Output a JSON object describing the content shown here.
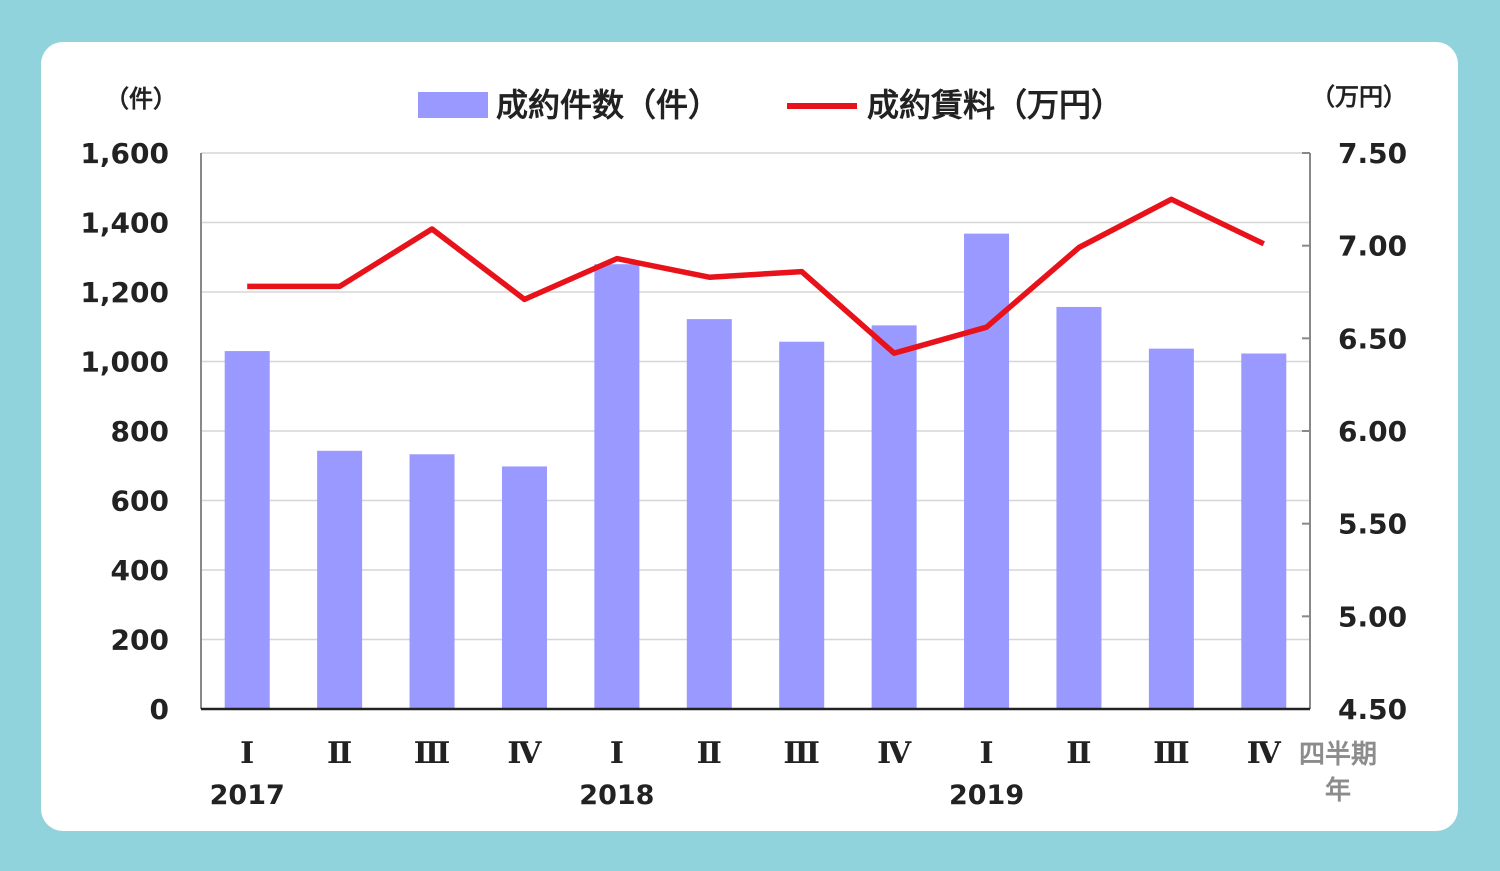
{
  "chart_data": {
    "type": "bar",
    "legend": {
      "placement": "top",
      "bar_label": "成約件数（件）",
      "line_label": "成約賃料（万円）"
    },
    "left_axis": {
      "unit": "（件）",
      "ylim": [
        0,
        1600
      ],
      "ticks": [
        "0",
        "200",
        "400",
        "600",
        "800",
        "1,000",
        "1,200",
        "1,400",
        "1,600"
      ]
    },
    "right_axis": {
      "unit": "（万円）",
      "ylim": [
        4.5,
        7.5
      ],
      "ticks": [
        "4.50",
        "5.00",
        "5.50",
        "6.00",
        "6.50",
        "7.00",
        "7.50"
      ]
    },
    "x_axis": {
      "quarter_label": "四半期",
      "year_label": "年",
      "quarters": [
        "Ⅰ",
        "Ⅱ",
        "Ⅲ",
        "Ⅳ",
        "Ⅰ",
        "Ⅱ",
        "Ⅲ",
        "Ⅳ",
        "Ⅰ",
        "Ⅱ",
        "Ⅲ",
        "Ⅳ"
      ],
      "years": [
        "2017",
        "2018",
        "2019"
      ]
    },
    "series": [
      {
        "name": "成約件数（件）",
        "type": "bar",
        "axis": "left",
        "color": "#9999ff",
        "values": [
          1030,
          743,
          733,
          698,
          1280,
          1122,
          1057,
          1104,
          1368,
          1157,
          1037,
          1023
        ]
      },
      {
        "name": "成約賃料（万円）",
        "type": "line",
        "axis": "right",
        "color": "#e8121b",
        "values": [
          6.78,
          6.78,
          7.09,
          6.71,
          6.93,
          6.83,
          6.86,
          6.42,
          6.56,
          6.99,
          7.25,
          7.01
        ]
      }
    ],
    "grid": true
  }
}
